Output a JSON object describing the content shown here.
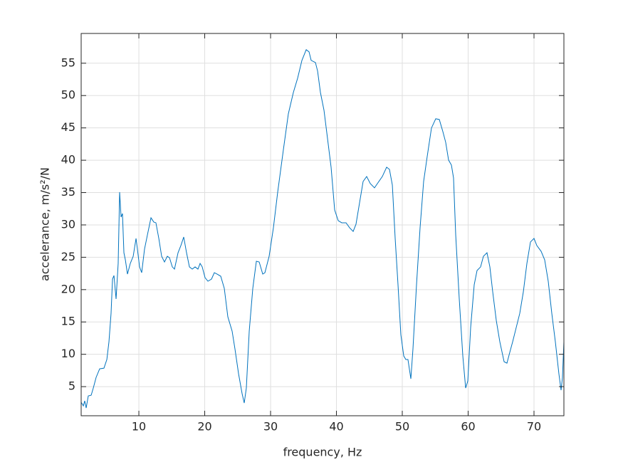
{
  "chart_data": {
    "type": "line",
    "xlabel": "frequency, Hz",
    "ylabel": "accelerance, m/s²/N",
    "xlim": [
      1.24,
      74.54
    ],
    "ylim": [
      0.5,
      59.6
    ],
    "xticks": [
      10,
      20,
      30,
      40,
      50,
      60,
      70
    ],
    "yticks": [
      5,
      10,
      15,
      20,
      25,
      30,
      35,
      40,
      45,
      50,
      55
    ],
    "grid": true,
    "series": [
      {
        "color": "#0072bd",
        "x": [
          1.24,
          1.57,
          1.78,
          2.0,
          2.32,
          2.76,
          3.08,
          3.51,
          4.05,
          4.7,
          5.14,
          5.46,
          5.78,
          6.0,
          6.22,
          6.54,
          6.86,
          7.08,
          7.3,
          7.51,
          7.73,
          7.95,
          8.27,
          8.7,
          9.14,
          9.57,
          9.78,
          10.11,
          10.43,
          10.86,
          11.3,
          11.84,
          12.27,
          12.59,
          13.03,
          13.46,
          13.89,
          14.32,
          14.65,
          15.08,
          15.41,
          15.95,
          16.38,
          16.81,
          17.24,
          17.68,
          18.11,
          18.54,
          18.97,
          19.3,
          19.62,
          20.05,
          20.49,
          21.03,
          21.46,
          21.89,
          22.43,
          22.97,
          23.51,
          24.16,
          24.59,
          25.14,
          25.68,
          26.0,
          26.32,
          26.76,
          27.3,
          27.84,
          28.27,
          28.81,
          29.14,
          29.78,
          30.43,
          31.08,
          31.95,
          32.7,
          33.46,
          34.11,
          34.76,
          35.41,
          35.84,
          36.16,
          36.81,
          37.14,
          37.57,
          38.11,
          38.65,
          39.19,
          39.73,
          40.27,
          40.81,
          41.46,
          42.0,
          42.54,
          42.97,
          43.51,
          44.05,
          44.59,
          45.14,
          45.78,
          46.22,
          46.97,
          47.62,
          48.05,
          48.49,
          48.92,
          49.35,
          49.78,
          50.22,
          50.54,
          50.86,
          51.3,
          51.62,
          52.16,
          52.7,
          53.24,
          53.78,
          54.43,
          55.08,
          55.62,
          56.16,
          56.59,
          57.03,
          57.46,
          57.78,
          58.11,
          58.65,
          59.19,
          59.62,
          59.95,
          60.38,
          60.92,
          61.35,
          61.89,
          62.32,
          62.86,
          63.3,
          63.73,
          64.27,
          64.81,
          65.46,
          65.89,
          66.32,
          66.76,
          67.3,
          67.84,
          68.38,
          68.92,
          69.46,
          70.0,
          70.43,
          71.08,
          71.62,
          72.16,
          72.7,
          73.24,
          73.78,
          74.11,
          74.32,
          74.54
        ],
        "values": [
          2.58,
          2.03,
          2.8,
          1.7,
          3.57,
          3.68,
          4.78,
          6.43,
          7.75,
          7.86,
          9.19,
          11.94,
          16.34,
          21.63,
          22.18,
          18.55,
          24.05,
          35.07,
          31.21,
          31.76,
          25.7,
          24.6,
          22.4,
          24.05,
          25.15,
          27.91,
          26.26,
          23.51,
          22.62,
          26.26,
          28.46,
          31.1,
          30.44,
          30.33,
          27.91,
          25.15,
          24.27,
          25.15,
          24.93,
          23.51,
          23.17,
          25.7,
          26.81,
          28.13,
          25.7,
          23.51,
          23.17,
          23.51,
          23.17,
          24.05,
          23.51,
          21.85,
          21.3,
          21.63,
          22.62,
          22.4,
          22.07,
          20.2,
          15.79,
          13.59,
          10.84,
          6.98,
          3.9,
          2.47,
          4.78,
          13.59,
          20.2,
          24.38,
          24.27,
          22.4,
          22.62,
          25.15,
          29.56,
          35.07,
          41.67,
          47.18,
          50.48,
          52.69,
          55.44,
          57.09,
          56.76,
          55.44,
          55.11,
          53.79,
          50.48,
          47.73,
          43.33,
          38.92,
          32.31,
          30.66,
          30.33,
          30.33,
          29.56,
          29.0,
          30.11,
          33.41,
          36.72,
          37.49,
          36.39,
          35.73,
          36.39,
          37.49,
          38.92,
          38.59,
          36.17,
          27.91,
          20.75,
          13.04,
          9.74,
          9.19,
          9.19,
          6.21,
          10.84,
          20.75,
          29.56,
          36.72,
          40.57,
          44.98,
          46.41,
          46.3,
          44.43,
          42.77,
          40.02,
          39.25,
          37.27,
          28.46,
          18.55,
          9.74,
          4.78,
          5.88,
          14.14,
          20.75,
          22.95,
          23.51,
          25.15,
          25.7,
          23.51,
          19.65,
          15.24,
          11.94,
          8.85,
          8.63,
          10.29,
          11.94,
          14.14,
          16.34,
          19.65,
          24.05,
          27.36,
          27.91,
          26.81,
          25.92,
          24.6,
          21.3,
          16.34,
          11.94,
          6.98,
          4.45,
          6.43,
          11.94
        ]
      }
    ]
  }
}
